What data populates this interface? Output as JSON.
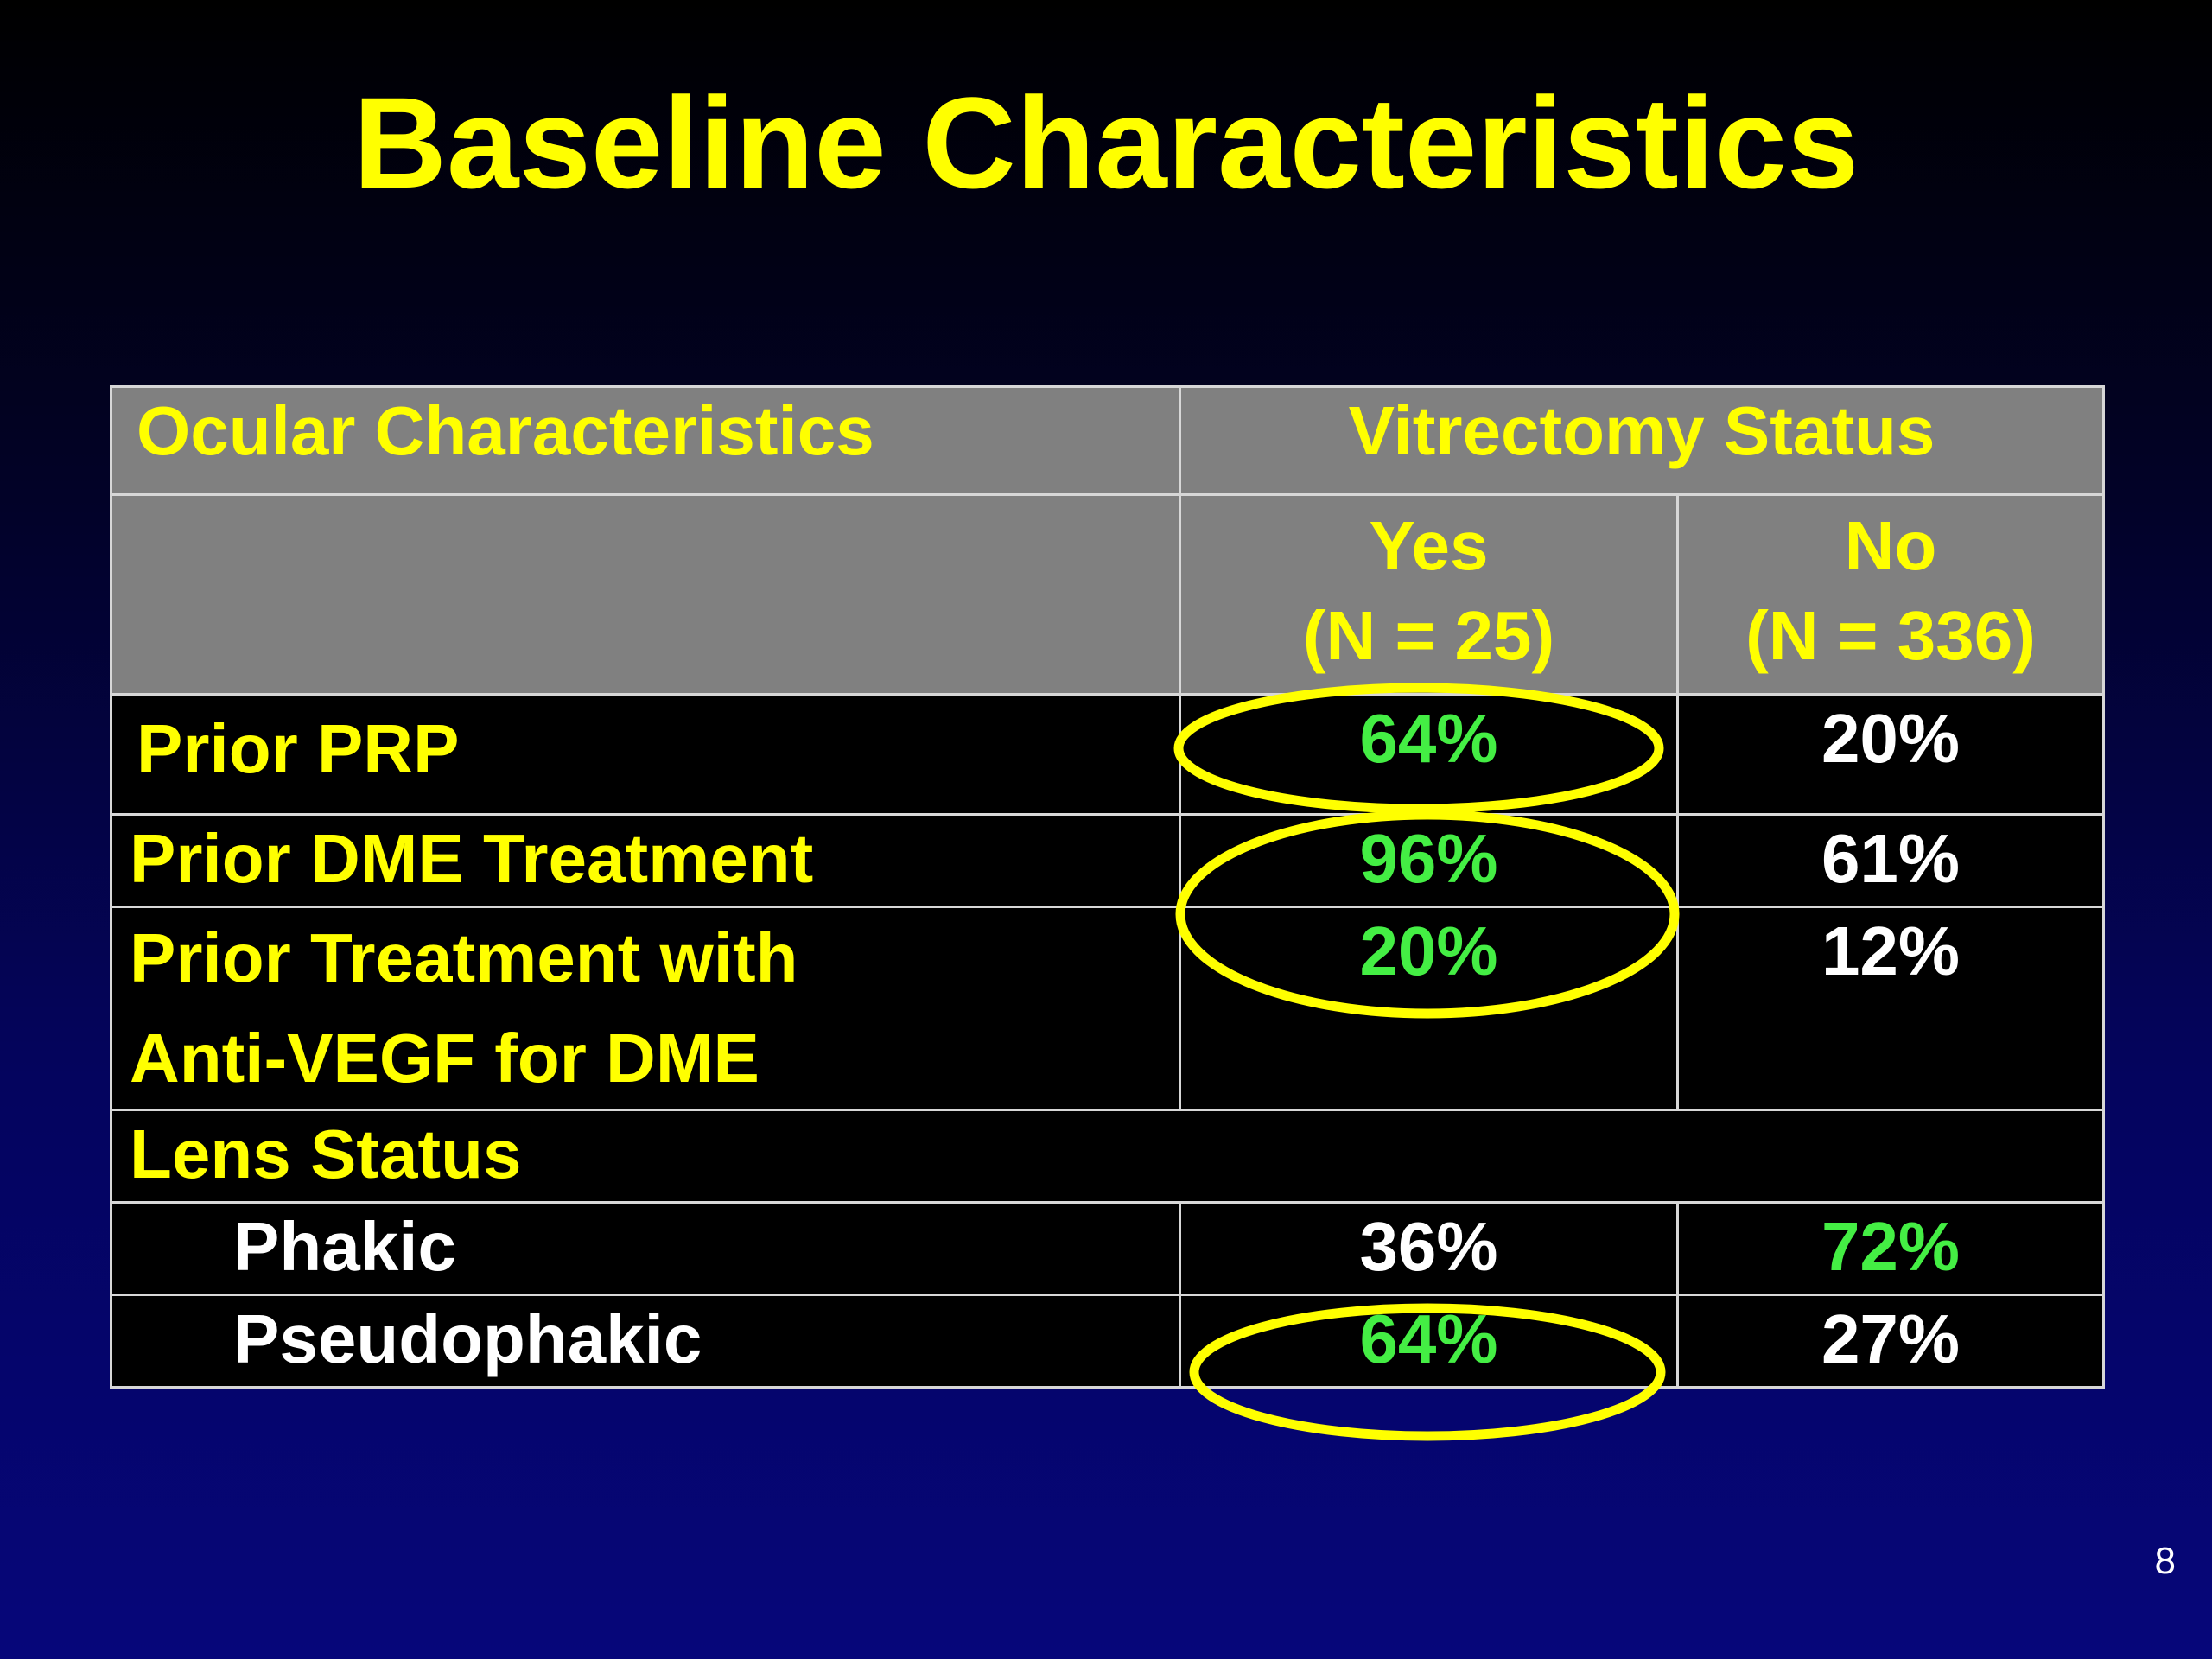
{
  "slide": {
    "title": "Baseline Characteristics",
    "page_number": "8"
  },
  "table": {
    "header": {
      "ocular_label": "Ocular Characteristics",
      "vitrectomy_label": "Vitrectomy Status",
      "yes_label": "Yes",
      "yes_n": "(N = 25)",
      "no_label": "No",
      "no_n": "(N = 336)"
    },
    "rows": [
      {
        "label": "Prior PRP",
        "yes": "64%",
        "no": "20%"
      },
      {
        "label": "Prior DME Treatment",
        "yes": "96%",
        "no": "61%"
      },
      {
        "label_line1": "Prior Treatment with",
        "label_line2": "Anti-VEGF for DME",
        "yes": "20%",
        "no": "12%"
      },
      {
        "label": "Lens Status"
      },
      {
        "label": "Phakic",
        "yes": "36%",
        "no": "72%"
      },
      {
        "label": "Pseudophakic",
        "yes": "64%",
        "no": "27%"
      }
    ]
  },
  "colors": {
    "title": "#ffff00",
    "header_bg": "#808080",
    "highlight_value": "#44ee44",
    "annotation_circle": "#ffff00"
  }
}
